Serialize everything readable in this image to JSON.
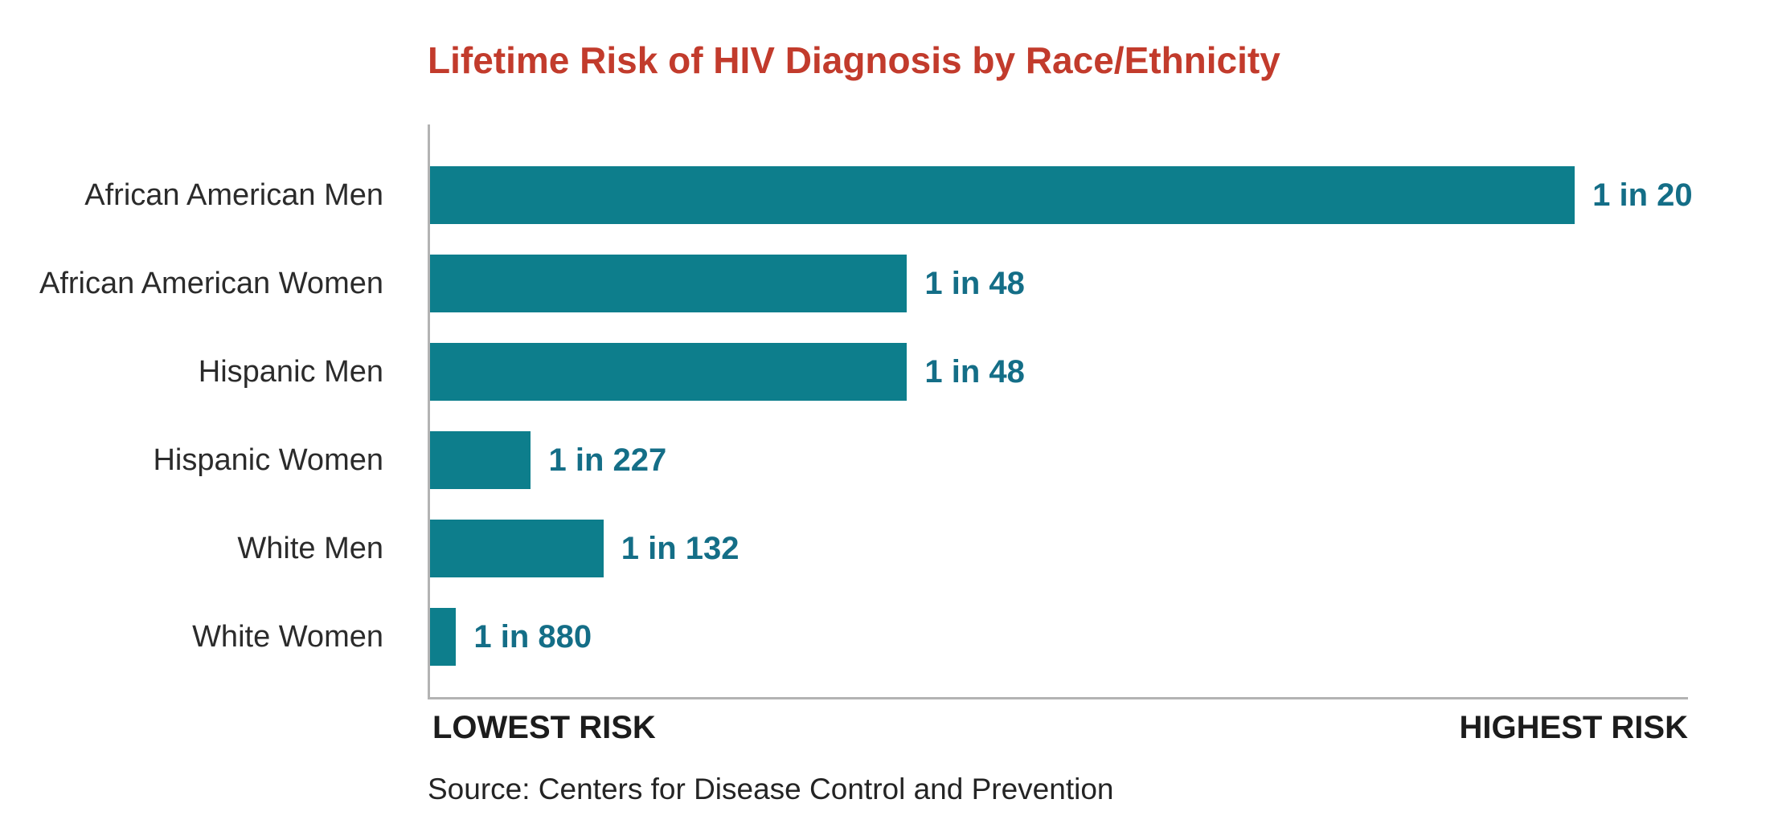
{
  "title": "Lifetime Risk of HIV Diagnosis by Race/Ethnicity",
  "source": "Source: Centers for Disease Control and Prevention",
  "colors": {
    "title": "#c23b2c",
    "bar": "#0d7e8c",
    "value_label": "#146e87",
    "axis_line": "#b3b3b3",
    "category_label": "#2b2b2b",
    "axis_caption": "#1c1c1c"
  },
  "chart_data": {
    "type": "bar",
    "orientation": "horizontal",
    "title": "Lifetime Risk of HIV Diagnosis by Race/Ethnicity",
    "categories": [
      "African American Men",
      "African American Women",
      "Hispanic Men",
      "Hispanic Women",
      "White Men",
      "White Women"
    ],
    "risk_denominators": [
      20,
      48,
      48,
      227,
      132,
      880
    ],
    "value_labels": [
      "1 in 20",
      "1 in 48",
      "1 in 48",
      "1 in 227",
      "1 in 132",
      "1 in 880"
    ],
    "note": "bar length proportional to risk 1/n; longest bar (1 in 20) spans 91% of plot width",
    "max_bar_pct": 91,
    "xlabel_left": "LOWEST RISK",
    "xlabel_right": "HIGHEST RISK",
    "legend": "none",
    "grid": "off"
  }
}
